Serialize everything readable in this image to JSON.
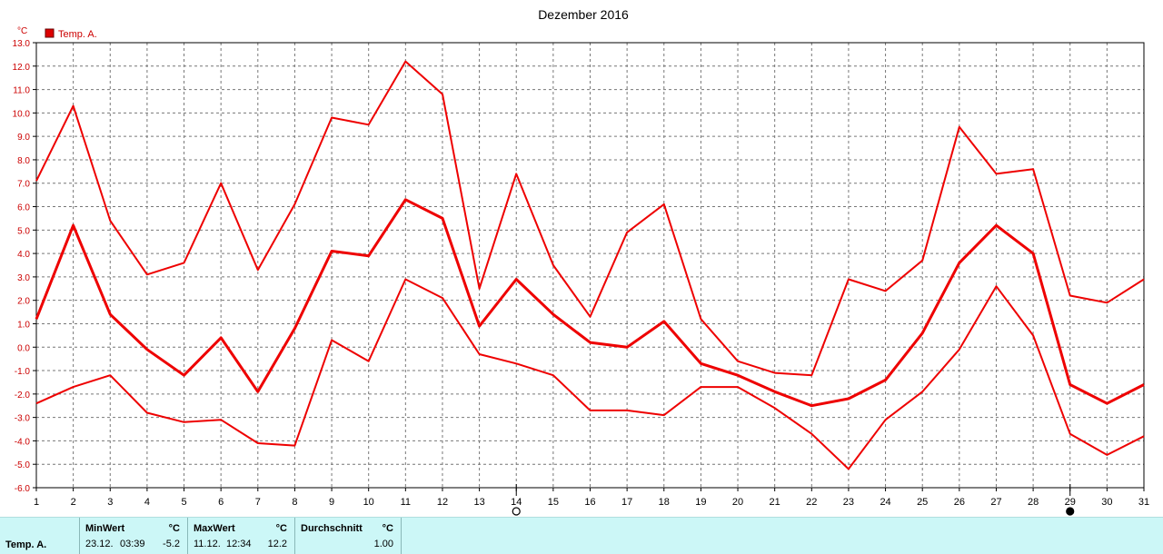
{
  "chart_data": {
    "type": "line",
    "title": "Dezember 2016",
    "y_unit": "°C",
    "legend": {
      "label": "Temp. A.",
      "placement": "top-left"
    },
    "x": [
      1,
      2,
      3,
      4,
      5,
      6,
      7,
      8,
      9,
      10,
      11,
      12,
      13,
      14,
      15,
      16,
      17,
      18,
      19,
      20,
      21,
      22,
      23,
      24,
      25,
      26,
      27,
      28,
      29,
      30,
      31
    ],
    "ylim": [
      -6.0,
      13.0
    ],
    "y_ticks": [
      "-6.0",
      "-5.0",
      "-4.0",
      "-3.0",
      "-2.0",
      "-1.0",
      "0.0",
      "1.0",
      "2.0",
      "3.0",
      "4.0",
      "5.0",
      "6.0",
      "7.0",
      "8.0",
      "9.0",
      "10.0",
      "11.0",
      "12.0",
      "13.0"
    ],
    "grid": true,
    "color": "#ee0000",
    "series": [
      {
        "values": [
          7.1,
          10.3,
          5.4,
          3.1,
          3.6,
          7.0,
          3.3,
          6.1,
          9.8,
          9.5,
          12.2,
          10.8,
          2.5,
          7.4,
          3.5,
          1.3,
          4.9,
          6.1,
          1.2,
          -0.6,
          -1.1,
          -1.2,
          2.9,
          2.4,
          3.7,
          9.4,
          7.4,
          7.6,
          2.2,
          1.9,
          2.9
        ]
      },
      {
        "values": [
          1.2,
          5.2,
          1.4,
          -0.1,
          -1.2,
          0.4,
          -1.9,
          0.8,
          4.1,
          3.9,
          6.3,
          5.5,
          0.9,
          2.9,
          1.4,
          0.2,
          0.0,
          1.1,
          -0.7,
          -1.2,
          -1.9,
          -2.5,
          -2.2,
          -1.4,
          0.6,
          3.6,
          5.2,
          4.0,
          -1.6,
          -2.4,
          -1.6
        ]
      },
      {
        "values": [
          -2.4,
          -1.7,
          -1.2,
          -2.8,
          -3.2,
          -3.1,
          -4.1,
          -4.2,
          0.3,
          -0.6,
          2.9,
          2.1,
          -0.3,
          -0.7,
          -1.2,
          -2.7,
          -2.7,
          -2.9,
          -1.7,
          -1.7,
          -2.6,
          -3.7,
          -5.2,
          -3.1,
          -1.9,
          -0.1,
          2.6,
          0.5,
          -3.7,
          -4.6,
          -3.8
        ]
      }
    ],
    "markers": [
      {
        "day": 14,
        "symbol": "moon-empty-circle"
      },
      {
        "day": 29,
        "symbol": "moon-filled-circle"
      }
    ]
  },
  "footer": {
    "row_label": "Temp. A.",
    "min": {
      "header": "MinWert",
      "unit": "°C",
      "date": "23.12.",
      "time": "03:39",
      "value": "-5.2"
    },
    "max": {
      "header": "MaxWert",
      "unit": "°C",
      "date": "11.12.",
      "time": "12:34",
      "value": "12.2"
    },
    "avg": {
      "header": "Durchschnitt",
      "unit": "°C",
      "value": "1.00"
    }
  }
}
